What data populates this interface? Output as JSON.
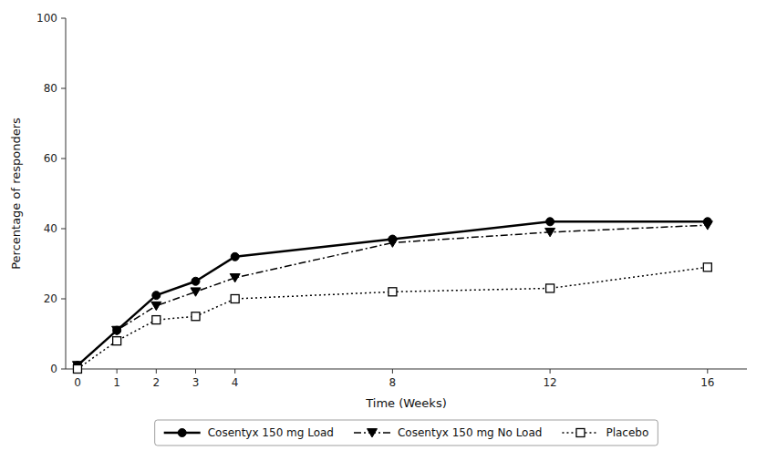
{
  "chart_data": {
    "type": "line",
    "x": [
      0,
      1,
      2,
      3,
      4,
      8,
      12,
      16
    ],
    "series": [
      {
        "name": "Cosentyx 150 mg Load",
        "color": "#000000",
        "marker": "circle",
        "line_style": "solid",
        "values": [
          1,
          11,
          21,
          25,
          32,
          37,
          42,
          42
        ]
      },
      {
        "name": "Cosentyx 150 mg No Load",
        "color": "#000000",
        "marker": "triangle-down",
        "line_style": "dashdot",
        "values": [
          1,
          11,
          18,
          22,
          26,
          36,
          39,
          41
        ]
      },
      {
        "name": "Placebo",
        "color": "#000000",
        "marker": "square-open",
        "line_style": "dotted",
        "values": [
          0,
          8,
          14,
          15,
          20,
          22,
          23,
          29
        ]
      }
    ],
    "xlabel": "Time (Weeks)",
    "ylabel": "Percentage of responders",
    "xlim": [
      -0.3,
      17.0
    ],
    "xticks": [
      0,
      1,
      2,
      3,
      4,
      8,
      12,
      16
    ],
    "ylim": [
      0,
      100
    ],
    "yticks": [
      0,
      20,
      40,
      60,
      80,
      100
    ],
    "grid": false,
    "legend": "bottom"
  }
}
